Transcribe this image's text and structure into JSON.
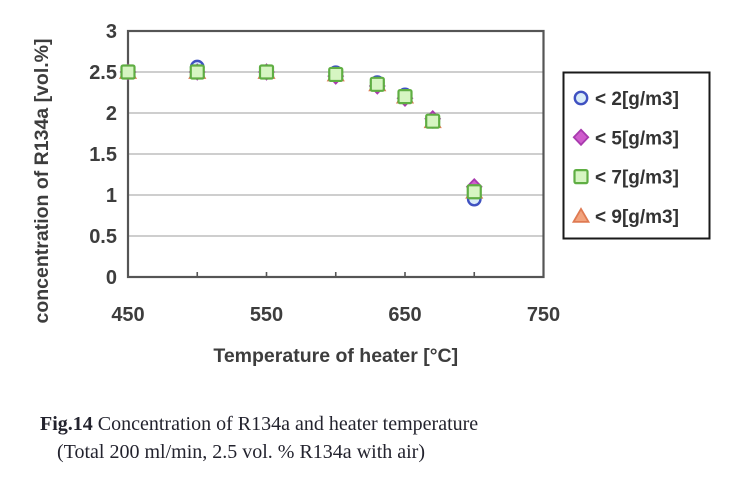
{
  "figure": {
    "caption_fig_label": "Fig.14",
    "caption_title": " Concentration of R134a and heater temperature",
    "caption_subtitle": "(Total 200 ml/min, 2.5 vol. % R134a with air)"
  },
  "chart_data": {
    "type": "scatter",
    "title": "",
    "xlabel": "Temperature of heater [°C]",
    "ylabel": "concentration of R134a [vol.%]",
    "xlim": [
      450,
      750
    ],
    "ylim": [
      0,
      3
    ],
    "x_major_ticks": [
      450,
      550,
      650,
      750
    ],
    "x_minor_tick_step": 50,
    "y_ticks": [
      0,
      0.5,
      1,
      1.5,
      2,
      2.5,
      3
    ],
    "grid": "horizontal",
    "grid_color": "#b0b0b0",
    "frame_color": "#555555",
    "legend_position": "right",
    "legend_border_color": "#1a1a1a",
    "x": [
      450,
      500,
      550,
      600,
      630,
      650,
      670,
      700
    ],
    "series": [
      {
        "name": "< 2[g/m3]",
        "marker": "circle",
        "fill": "#d9ecf8",
        "stroke": "#3f51c1",
        "values": [
          2.5,
          2.56,
          2.5,
          2.49,
          2.37,
          2.22,
          1.9,
          0.95
        ]
      },
      {
        "name": "< 5[g/m3]",
        "marker": "diamond",
        "fill": "#cf5ccd",
        "stroke": "#a83aae",
        "values": [
          2.5,
          2.5,
          2.5,
          2.45,
          2.33,
          2.18,
          1.93,
          1.1
        ]
      },
      {
        "name": "< 7[g/m3]",
        "marker": "square",
        "fill": "#d6f5c2",
        "stroke": "#5fae43",
        "values": [
          2.5,
          2.5,
          2.5,
          2.47,
          2.35,
          2.2,
          1.9,
          1.04
        ]
      },
      {
        "name": "< 9[g/m3]",
        "marker": "triangle",
        "fill": "#f2a37d",
        "stroke": "#df7a52",
        "values": [
          2.5,
          2.5,
          2.5,
          2.47,
          2.35,
          2.2,
          1.9,
          1.04
        ]
      }
    ],
    "draw_order": [
      3,
      0,
      1,
      2
    ]
  }
}
